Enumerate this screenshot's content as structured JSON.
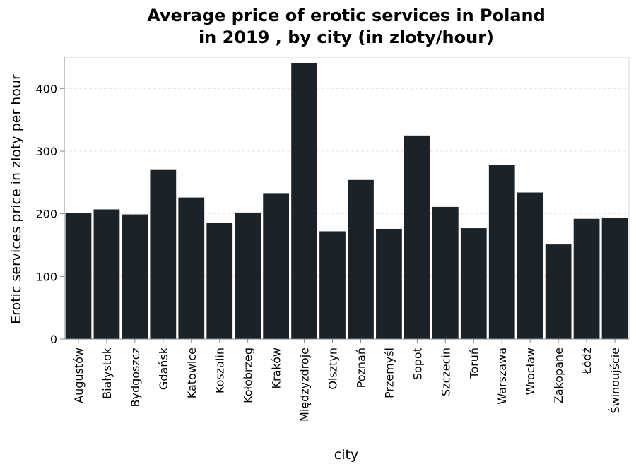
{
  "chart_data": {
    "type": "bar",
    "title": [
      "Average price of erotic services in Poland",
      "in 2019 , by city (in zloty/hour)"
    ],
    "xlabel": "city",
    "ylabel": "Erotic services price in zloty per hour",
    "ylim": [
      0,
      450
    ],
    "yticks": [
      0,
      100,
      200,
      300,
      400
    ],
    "grid": true,
    "bar_color": "#1b2228",
    "categories": [
      "Augustów",
      "Białystok",
      "Bydgoszcz",
      "Gdańsk",
      "Katowice",
      "Koszalin",
      "Kołobrzeg",
      "Kraków",
      "Międzyzdroje",
      "Olsztyn",
      "Poznań",
      "Przemyśl",
      "Sopot",
      "Szczecin",
      "Toruń",
      "Warszawa",
      "Wrocław",
      "Zakopane",
      "Łódź",
      "Świnoujście"
    ],
    "values": [
      201,
      207,
      199,
      271,
      226,
      185,
      202,
      233,
      441,
      172,
      254,
      176,
      325,
      211,
      177,
      278,
      234,
      151,
      192,
      194
    ]
  }
}
